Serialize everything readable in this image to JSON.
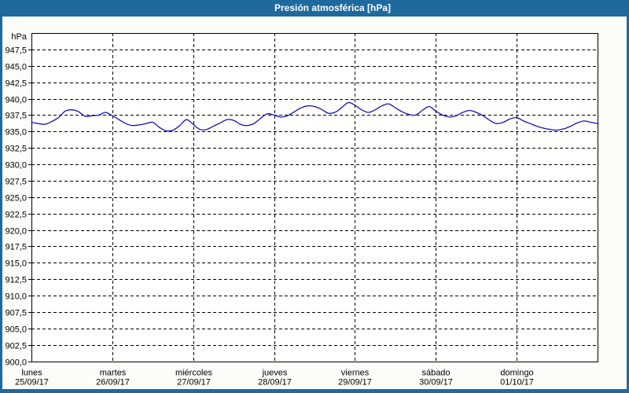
{
  "window": {
    "title": "Presión atmosférica [hPa]"
  },
  "colors": {
    "frame": "#1e6a9e",
    "title_text": "#ffffff",
    "content_bg": "#fcfdf9",
    "plot_bg": "#fffffe",
    "axis": "#000000",
    "grid": "#000000",
    "line": "#1313b8",
    "text": "#000000"
  },
  "chart_data": {
    "type": "line",
    "title": "Presión atmosférica [hPa]",
    "ylabel": "hPa",
    "ylim": [
      900,
      950
    ],
    "ytick_step": 2.5,
    "ytick_labels": [
      "900,0",
      "902,5",
      "905,0",
      "907,5",
      "910,0",
      "912,5",
      "915,0",
      "917,5",
      "920,0",
      "922,5",
      "925,0",
      "927,5",
      "930,0",
      "932,5",
      "935,0",
      "937,5",
      "940,0",
      "942,5",
      "945,0",
      "947,5"
    ],
    "grid": "dashed",
    "legend": "none",
    "x_axis": {
      "unit": "hours",
      "range_hours": [
        0,
        168
      ],
      "hours_per_day": 24
    },
    "days": [
      {
        "name": "lunes",
        "date": "25/09/17"
      },
      {
        "name": "martes",
        "date": "26/09/17"
      },
      {
        "name": "miércoles",
        "date": "27/09/17"
      },
      {
        "name": "jueves",
        "date": "28/09/17"
      },
      {
        "name": "viernes",
        "date": "29/09/17"
      },
      {
        "name": "sábado",
        "date": "30/09/17"
      },
      {
        "name": "domingo",
        "date": "01/10/17"
      }
    ],
    "series": [
      {
        "name": "Presión atmosférica",
        "unit": "hPa",
        "color": "#1313b8",
        "points_t_hours_v_hpa": [
          [
            0,
            936.4
          ],
          [
            2,
            936.2
          ],
          [
            4,
            936.1
          ],
          [
            6,
            936.5
          ],
          [
            8,
            937.1
          ],
          [
            10,
            938.1
          ],
          [
            12,
            938.3
          ],
          [
            14,
            938.0
          ],
          [
            16,
            937.3
          ],
          [
            18,
            937.4
          ],
          [
            20,
            937.5
          ],
          [
            22,
            937.9
          ],
          [
            24,
            937.4
          ],
          [
            26,
            936.8
          ],
          [
            28,
            936.2
          ],
          [
            30,
            935.9
          ],
          [
            32,
            936.0
          ],
          [
            34,
            936.2
          ],
          [
            36,
            936.4
          ],
          [
            38,
            935.6
          ],
          [
            40,
            935.1
          ],
          [
            42,
            935.2
          ],
          [
            44,
            935.9
          ],
          [
            46,
            936.8
          ],
          [
            48,
            936.1
          ],
          [
            50,
            935.3
          ],
          [
            52,
            935.3
          ],
          [
            54,
            935.8
          ],
          [
            56,
            936.3
          ],
          [
            58,
            936.8
          ],
          [
            60,
            936.7
          ],
          [
            62,
            936.1
          ],
          [
            64,
            935.9
          ],
          [
            66,
            936.2
          ],
          [
            68,
            937.0
          ],
          [
            70,
            937.7
          ],
          [
            72,
            937.5
          ],
          [
            74,
            937.2
          ],
          [
            76,
            937.4
          ],
          [
            78,
            938.0
          ],
          [
            80,
            938.6
          ],
          [
            82,
            938.9
          ],
          [
            84,
            938.8
          ],
          [
            86,
            938.4
          ],
          [
            88,
            937.8
          ],
          [
            90,
            937.9
          ],
          [
            92,
            938.6
          ],
          [
            94,
            939.4
          ],
          [
            96,
            939.0
          ],
          [
            98,
            938.3
          ],
          [
            100,
            937.9
          ],
          [
            102,
            938.3
          ],
          [
            104,
            938.9
          ],
          [
            106,
            939.2
          ],
          [
            108,
            938.6
          ],
          [
            110,
            938.0
          ],
          [
            112,
            937.6
          ],
          [
            114,
            937.5
          ],
          [
            116,
            938.2
          ],
          [
            118,
            938.8
          ],
          [
            120,
            938.1
          ],
          [
            122,
            937.5
          ],
          [
            124,
            937.2
          ],
          [
            126,
            937.4
          ],
          [
            128,
            937.9
          ],
          [
            130,
            938.2
          ],
          [
            132,
            937.9
          ],
          [
            134,
            937.4
          ],
          [
            136,
            936.7
          ],
          [
            138,
            936.2
          ],
          [
            140,
            936.4
          ],
          [
            142,
            936.9
          ],
          [
            144,
            937.1
          ],
          [
            146,
            936.6
          ],
          [
            148,
            936.2
          ],
          [
            150,
            935.8
          ],
          [
            152,
            935.5
          ],
          [
            154,
            935.3
          ],
          [
            156,
            935.2
          ],
          [
            158,
            935.4
          ],
          [
            160,
            935.8
          ],
          [
            162,
            936.3
          ],
          [
            164,
            936.6
          ],
          [
            166,
            936.4
          ],
          [
            168,
            936.2
          ]
        ]
      }
    ]
  }
}
